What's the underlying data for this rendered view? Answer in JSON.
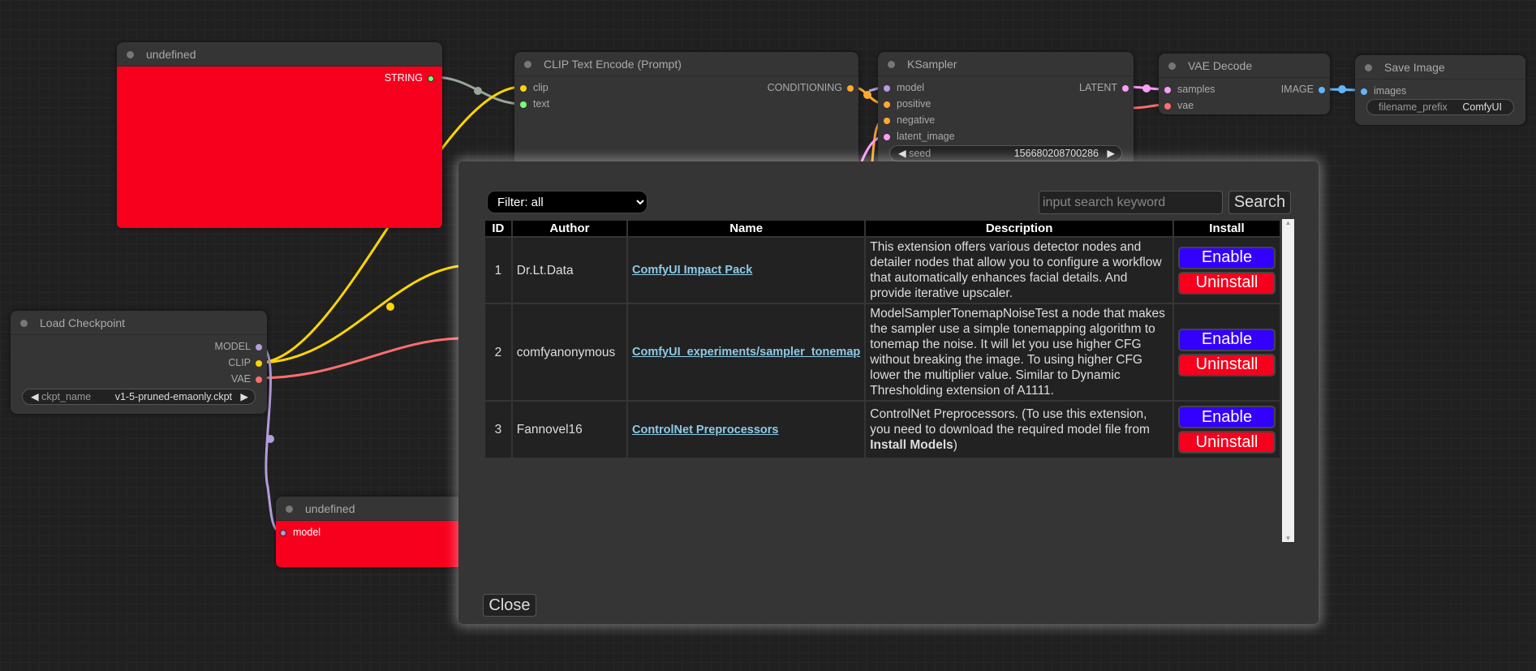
{
  "nodes": {
    "undefined_top": {
      "title": "undefined",
      "outputs": [
        "STRING"
      ]
    },
    "clip": {
      "title": "CLIP Text Encode (Prompt)",
      "inputs": [
        "clip",
        "text"
      ],
      "outputs": [
        "CONDITIONING"
      ]
    },
    "ksampler": {
      "title": "KSampler",
      "inputs": [
        "model",
        "positive",
        "negative",
        "latent_image"
      ],
      "outputs": [
        "LATENT"
      ],
      "seed_label": "seed",
      "seed_value": "156680208700286"
    },
    "vae": {
      "title": "VAE Decode",
      "inputs": [
        "samples",
        "vae"
      ],
      "outputs": [
        "IMAGE"
      ]
    },
    "save": {
      "title": "Save Image",
      "inputs": [
        "images"
      ],
      "prefix_label": "filename_prefix",
      "prefix_value": "ComfyUI"
    },
    "checkpoint": {
      "title": "Load Checkpoint",
      "outputs": [
        "MODEL",
        "CLIP",
        "VAE"
      ],
      "ckpt_label": "ckpt_name",
      "ckpt_value": "v1-5-pruned-emaonly.ckpt"
    },
    "undefined_bottom": {
      "title": "undefined",
      "inputs": [
        "model"
      ]
    }
  },
  "dialog": {
    "filter": "Filter: all",
    "search_placeholder": "input search keyword",
    "search_label": "Search",
    "close_label": "Close",
    "columns": [
      "ID",
      "Author",
      "Name",
      "Description",
      "Install"
    ],
    "rows": [
      {
        "id": "1",
        "author": "Dr.Lt.Data",
        "name": "ComfyUI Impact Pack",
        "desc": "This extension offers various detector nodes and detailer nodes that allow you to configure a workflow that automatically enhances facial details. And provide iterative upscaler.",
        "enable": "Enable",
        "uninstall": "Uninstall"
      },
      {
        "id": "2",
        "author": "comfyanonymous",
        "name": "ComfyUI_experiments/sampler_tonemap",
        "desc": "ModelSamplerTonemapNoiseTest a node that makes the sampler use a simple tonemapping algorithm to tonemap the noise. It will let you use higher CFG without breaking the image. To using higher CFG lower the multiplier value. Similar to Dynamic Thresholding extension of A1111.",
        "enable": "Enable",
        "uninstall": "Uninstall"
      },
      {
        "id": "3",
        "author": "Fannovel16",
        "name": "ControlNet Preprocessors",
        "desc_pre": "ControlNet Preprocessors. (To use this extension, you need to download the required model file from ",
        "desc_bold": "Install Models",
        "desc_post": ")",
        "enable": "Enable",
        "uninstall": "Uninstall"
      }
    ]
  },
  "colors": {
    "clip": "#ffd500",
    "model": "#b39ddb",
    "vae": "#ff6e6e",
    "conditioning": "#ffa931",
    "latent": "#ff9cf9",
    "image": "#64b5f6",
    "string": "#77ff77",
    "enable": "#3300ff",
    "uninstall": "#f6001e"
  }
}
